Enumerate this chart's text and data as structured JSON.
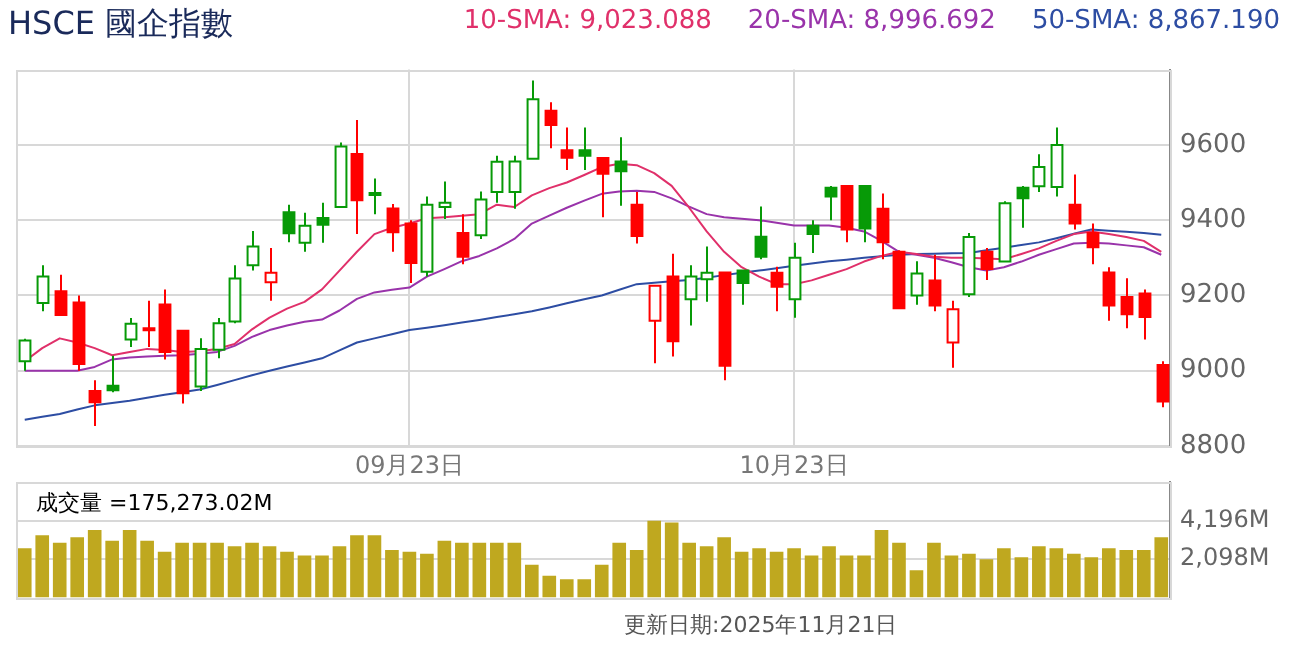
{
  "chart_data": [
    {
      "type": "candlestick",
      "title": "HSCE 國企指數",
      "categories": [
        null,
        null,
        null,
        null,
        null,
        null,
        null,
        null,
        null,
        null,
        null,
        null,
        null,
        null,
        null,
        null,
        null,
        null,
        null,
        null,
        null,
        null,
        "09月23日",
        null,
        null,
        null,
        null,
        null,
        null,
        null,
        null,
        null,
        null,
        null,
        null,
        null,
        null,
        null,
        null,
        null,
        null,
        null,
        null,
        null,
        "10月23日",
        null,
        null,
        null,
        null,
        null,
        null,
        null,
        null,
        null,
        null,
        null,
        null,
        null,
        null,
        null,
        null,
        null,
        null,
        null,
        null,
        null
      ],
      "ohlc": [
        [
          9025,
          9085,
          9000,
          9080
        ],
        [
          9180,
          9280,
          9158,
          9250
        ],
        [
          9211,
          9255,
          9148,
          9148
        ],
        [
          9181,
          9200,
          9000,
          9018
        ],
        [
          8946,
          8975,
          8853,
          8916
        ],
        [
          8960,
          9040,
          8943,
          8948
        ],
        [
          9083,
          9140,
          9063,
          9125
        ],
        [
          9113,
          9186,
          9063,
          9108
        ],
        [
          9176,
          9216,
          9030,
          9050
        ],
        [
          9106,
          9106,
          8913,
          8940
        ],
        [
          8958,
          9086,
          8946,
          9058
        ],
        [
          9056,
          9140,
          9033,
          9126
        ],
        [
          9131,
          9280,
          9126,
          9245
        ],
        [
          9280,
          9371,
          9266,
          9330
        ],
        [
          9235,
          9326,
          9186,
          9260
        ],
        [
          9421,
          9441,
          9341,
          9365
        ],
        [
          9340,
          9420,
          9316,
          9385
        ],
        [
          9406,
          9446,
          9340,
          9388
        ],
        [
          9435,
          9606,
          9435,
          9596
        ],
        [
          9576,
          9666,
          9363,
          9453
        ],
        [
          9470,
          9511,
          9416,
          9472
        ],
        [
          9431,
          9443,
          9316,
          9368
        ],
        [
          9391,
          9400,
          9233,
          9286
        ],
        [
          9263,
          9463,
          9250,
          9441
        ],
        [
          9435,
          9503,
          9403,
          9446
        ],
        [
          9366,
          9416,
          9283,
          9303
        ],
        [
          9360,
          9476,
          9350,
          9455
        ],
        [
          9475,
          9571,
          9446,
          9555
        ],
        [
          9475,
          9571,
          9430,
          9556
        ],
        [
          9563,
          9771,
          9563,
          9721
        ],
        [
          9691,
          9713,
          9591,
          9653
        ],
        [
          9586,
          9646,
          9533,
          9566
        ],
        [
          9586,
          9646,
          9533,
          9571
        ],
        [
          9565,
          9565,
          9408,
          9523
        ],
        [
          9556,
          9620,
          9438,
          9530
        ],
        [
          9441,
          9475,
          9338,
          9358
        ],
        [
          9133,
          9226,
          9020,
          9226
        ],
        [
          9250,
          9311,
          9038,
          9078
        ],
        [
          9190,
          9280,
          9120,
          9250
        ],
        [
          9243,
          9330,
          9183,
          9260
        ],
        [
          9261,
          9261,
          8975,
          9013
        ],
        [
          9266,
          9266,
          9175,
          9233
        ],
        [
          9356,
          9436,
          9296,
          9303
        ],
        [
          9260,
          9276,
          9158,
          9223
        ],
        [
          9190,
          9340,
          9141,
          9300
        ],
        [
          9385,
          9400,
          9313,
          9363
        ],
        [
          9486,
          9491,
          9400,
          9463
        ],
        [
          9491,
          9491,
          9341,
          9375
        ],
        [
          9491,
          9491,
          9341,
          9378
        ],
        [
          9430,
          9471,
          9296,
          9341
        ],
        [
          9316,
          9320,
          9166,
          9166
        ],
        [
          9200,
          9291,
          9175,
          9258
        ],
        [
          9240,
          9308,
          9158,
          9173
        ],
        [
          9075,
          9186,
          9008,
          9163
        ],
        [
          9203,
          9366,
          9196,
          9355
        ],
        [
          9316,
          9326,
          9241,
          9270
        ],
        [
          9290,
          9450,
          9290,
          9445
        ],
        [
          9486,
          9491,
          9380,
          9458
        ],
        [
          9490,
          9575,
          9475,
          9541
        ],
        [
          9488,
          9646,
          9463,
          9600
        ],
        [
          9441,
          9521,
          9375,
          9391
        ],
        [
          9366,
          9391,
          9283,
          9328
        ],
        [
          9261,
          9275,
          9133,
          9173
        ],
        [
          9196,
          9246,
          9113,
          9150
        ],
        [
          9205,
          9216,
          9083,
          9143
        ],
        [
          9015,
          9025,
          8903,
          8918
        ]
      ],
      "colors": [
        "#079a07",
        "#079a07",
        "#ff0000",
        "#ff0000",
        "#ff0000",
        "#079a07",
        "#079a07",
        "#ff0000",
        "#ff0000",
        "#ff0000",
        "#079a07",
        "#079a07",
        "#079a07",
        "#079a07",
        "#ff0000",
        "#079a07",
        "#079a07",
        "#079a07",
        "#079a07",
        "#ff0000",
        "#079a07",
        "#ff0000",
        "#ff0000",
        "#079a07",
        "#079a07",
        "#ff0000",
        "#079a07",
        "#079a07",
        "#079a07",
        "#079a07",
        "#ff0000",
        "#ff0000",
        "#079a07",
        "#ff0000",
        "#079a07",
        "#ff0000",
        "#ff0000",
        "#ff0000",
        "#079a07",
        "#079a07",
        "#ff0000",
        "#079a07",
        "#079a07",
        "#ff0000",
        "#079a07",
        "#079a07",
        "#079a07",
        "#ff0000",
        "#079a07",
        "#ff0000",
        "#ff0000",
        "#079a07",
        "#ff0000",
        "#ff0000",
        "#079a07",
        "#ff0000",
        "#079a07",
        "#079a07",
        "#079a07",
        "#079a07",
        "#ff0000",
        "#ff0000",
        "#ff0000",
        "#ff0000",
        "#ff0000",
        "#ff0000"
      ],
      "series": [
        {
          "type": "line",
          "name": "10-SMA: 9,023.088",
          "color": "#e0306a",
          "values": [
            9025,
            9060,
            9086,
            9075,
            9060,
            9041,
            9050,
            9058,
            9055,
            9050,
            9052,
            9058,
            9071,
            9110,
            9141,
            9165,
            9183,
            9216,
            9266,
            9316,
            9363,
            9380,
            9391,
            9405,
            9408,
            9412,
            9416,
            9441,
            9435,
            9466,
            9485,
            9500,
            9520,
            9541,
            9550,
            9546,
            9525,
            9491,
            9433,
            9370,
            9316,
            9275,
            9250,
            9230,
            9230,
            9240,
            9255,
            9270,
            9290,
            9305,
            9316,
            9310,
            9303,
            9300,
            9300,
            9298,
            9296,
            9310,
            9325,
            9345,
            9363,
            9370,
            9363,
            9355,
            9345,
            9316
          ]
        },
        {
          "type": "line",
          "name": "20-SMA: 8,996.692",
          "color": "#9933aa",
          "values": [
            9000,
            9000,
            9000,
            9000,
            9010,
            9030,
            9035,
            9038,
            9040,
            9041,
            9045,
            9050,
            9066,
            9090,
            9108,
            9120,
            9130,
            9136,
            9160,
            9191,
            9208,
            9215,
            9221,
            9250,
            9270,
            9291,
            9305,
            9325,
            9350,
            9391,
            9412,
            9433,
            9452,
            9470,
            9476,
            9478,
            9475,
            9458,
            9436,
            9416,
            9408,
            9404,
            9400,
            9393,
            9386,
            9386,
            9386,
            9380,
            9370,
            9345,
            9316,
            9308,
            9300,
            9288,
            9275,
            9266,
            9275,
            9290,
            9308,
            9323,
            9338,
            9340,
            9338,
            9333,
            9328,
            9308
          ]
        },
        {
          "type": "line",
          "name": "50-SMA: 8,867.190",
          "color": "#2d4da3",
          "values": [
            8870,
            8878,
            8885,
            8897,
            8908,
            8914,
            8920,
            8928,
            8936,
            8943,
            8950,
            8962,
            8975,
            8988,
            9000,
            9011,
            9022,
            9033,
            9054,
            9075,
            9086,
            9097,
            9108,
            9114,
            9121,
            9128,
            9135,
            9143,
            9150,
            9158,
            9168,
            9179,
            9190,
            9200,
            9215,
            9230,
            9234,
            9238,
            9241,
            9247,
            9254,
            9260,
            9266,
            9272,
            9279,
            9285,
            9291,
            9295,
            9300,
            9304,
            9308,
            9310,
            9311,
            9312,
            9313,
            9320,
            9327,
            9334,
            9341,
            9352,
            9364,
            9375,
            9372,
            9369,
            9366,
            9361
          ]
        }
      ],
      "ylim": [
        8800,
        9800
      ],
      "yticks": [
        8800,
        9000,
        9200,
        9400,
        9600
      ],
      "grid": true,
      "legend": "top right"
    },
    {
      "type": "bar",
      "title": "成交量 =175,273.02M",
      "categories": [
        null,
        null,
        null,
        null,
        null,
        null,
        null,
        null,
        null,
        null,
        null,
        null,
        null,
        null,
        null,
        null,
        null,
        null,
        null,
        null,
        null,
        null,
        null,
        null,
        null,
        null,
        null,
        null,
        null,
        null,
        null,
        null,
        null,
        null,
        null,
        null,
        null,
        null,
        null,
        null,
        null,
        null,
        null,
        null,
        null,
        null,
        null,
        null,
        null,
        null,
        null,
        null,
        null,
        null,
        null,
        null,
        null,
        null,
        null,
        null,
        null,
        null,
        null,
        null,
        null,
        null
      ],
      "values": [
        2700,
        3400,
        3000,
        3300,
        3700,
        3100,
        3700,
        3100,
        2500,
        3000,
        3000,
        3000,
        2800,
        3000,
        2800,
        2500,
        2300,
        2300,
        2800,
        3400,
        3400,
        2600,
        2500,
        2400,
        3100,
        3000,
        3000,
        3000,
        3000,
        1800,
        1200,
        1000,
        1000,
        1800,
        3000,
        2600,
        4200,
        4100,
        3000,
        2800,
        3300,
        2500,
        2700,
        2500,
        2700,
        2300,
        2800,
        2300,
        2300,
        3700,
        3000,
        1500,
        3000,
        2300,
        2400,
        2100,
        2700,
        2200,
        2800,
        2700,
        2400,
        2200,
        2700,
        2600,
        2600,
        3300
      ],
      "color": "#bfa81f",
      "ylim": [
        0,
        6294
      ],
      "yticks": [
        {
          "value": 2098,
          "label": "2,098M"
        },
        {
          "value": 4196,
          "label": "4,196M"
        }
      ],
      "grid": true,
      "tick_labels": "y",
      "annotations": [
        "更新日期:2025年11月21日"
      ]
    }
  ]
}
